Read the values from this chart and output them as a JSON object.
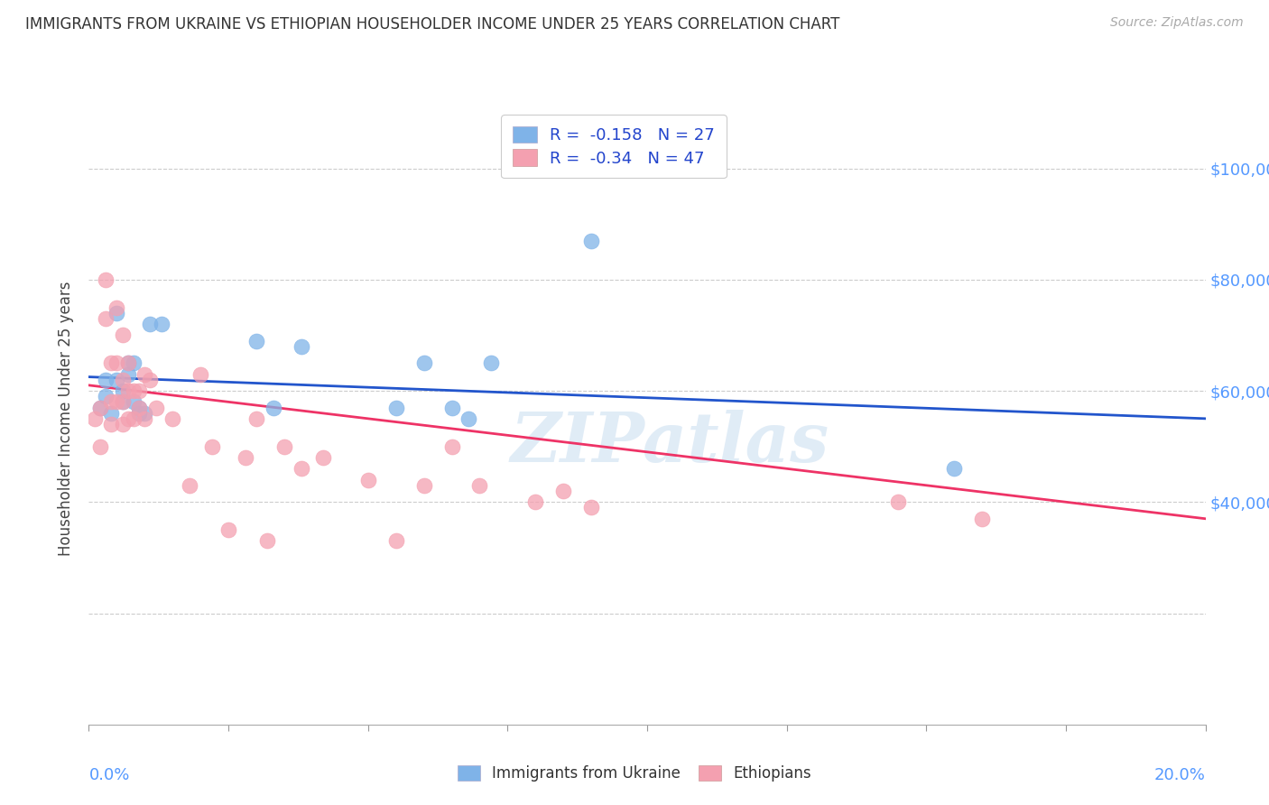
{
  "title": "IMMIGRANTS FROM UKRAINE VS ETHIOPIAN HOUSEHOLDER INCOME UNDER 25 YEARS CORRELATION CHART",
  "source": "Source: ZipAtlas.com",
  "ylabel": "Householder Income Under 25 years",
  "xlim": [
    0.0,
    0.2
  ],
  "ylim": [
    0,
    110000
  ],
  "ukraine_color": "#7fb3e8",
  "ethiopia_color": "#f4a0b0",
  "ukraine_line_color": "#2255cc",
  "ethiopia_line_color": "#ee3366",
  "ukraine_R": -0.158,
  "ukraine_N": 27,
  "ethiopia_R": -0.34,
  "ethiopia_N": 47,
  "ukraine_line_x0": 0.0,
  "ukraine_line_y0": 62500,
  "ukraine_line_x1": 0.2,
  "ukraine_line_y1": 55000,
  "ethiopia_line_x0": 0.0,
  "ethiopia_line_y0": 61000,
  "ethiopia_line_x1": 0.2,
  "ethiopia_line_y1": 37000,
  "ukraine_scatter_x": [
    0.002,
    0.003,
    0.003,
    0.004,
    0.005,
    0.005,
    0.006,
    0.006,
    0.007,
    0.007,
    0.008,
    0.008,
    0.009,
    0.009,
    0.01,
    0.011,
    0.013,
    0.03,
    0.033,
    0.038,
    0.055,
    0.06,
    0.065,
    0.068,
    0.072,
    0.09,
    0.155
  ],
  "ukraine_scatter_y": [
    57000,
    59000,
    62000,
    56000,
    74000,
    62000,
    60000,
    58000,
    65000,
    63000,
    65000,
    58000,
    56000,
    57000,
    56000,
    72000,
    72000,
    69000,
    57000,
    68000,
    57000,
    65000,
    57000,
    55000,
    65000,
    87000,
    46000
  ],
  "ethiopia_scatter_x": [
    0.001,
    0.002,
    0.002,
    0.003,
    0.003,
    0.004,
    0.004,
    0.004,
    0.005,
    0.005,
    0.005,
    0.006,
    0.006,
    0.006,
    0.006,
    0.007,
    0.007,
    0.007,
    0.008,
    0.008,
    0.009,
    0.009,
    0.01,
    0.01,
    0.011,
    0.012,
    0.015,
    0.018,
    0.02,
    0.022,
    0.025,
    0.028,
    0.03,
    0.032,
    0.035,
    0.038,
    0.042,
    0.05,
    0.055,
    0.06,
    0.065,
    0.07,
    0.08,
    0.085,
    0.09,
    0.145,
    0.16
  ],
  "ethiopia_scatter_y": [
    55000,
    57000,
    50000,
    80000,
    73000,
    65000,
    58000,
    54000,
    75000,
    65000,
    58000,
    70000,
    62000,
    58000,
    54000,
    65000,
    60000,
    55000,
    60000,
    55000,
    60000,
    57000,
    63000,
    55000,
    62000,
    57000,
    55000,
    43000,
    63000,
    50000,
    35000,
    48000,
    55000,
    33000,
    50000,
    46000,
    48000,
    44000,
    33000,
    43000,
    50000,
    43000,
    40000,
    42000,
    39000,
    40000,
    37000
  ],
  "watermark_text": "ZIPatlas",
  "background_color": "#ffffff",
  "grid_color": "#cccccc",
  "ytick_values": [
    20000,
    40000,
    60000,
    80000,
    100000
  ],
  "right_ytick_labels": [
    "",
    "$40,000",
    "$60,000",
    "$80,000",
    "$100,000"
  ],
  "xtick_values": [
    0.0,
    0.025,
    0.05,
    0.075,
    0.1,
    0.125,
    0.15,
    0.175,
    0.2
  ]
}
